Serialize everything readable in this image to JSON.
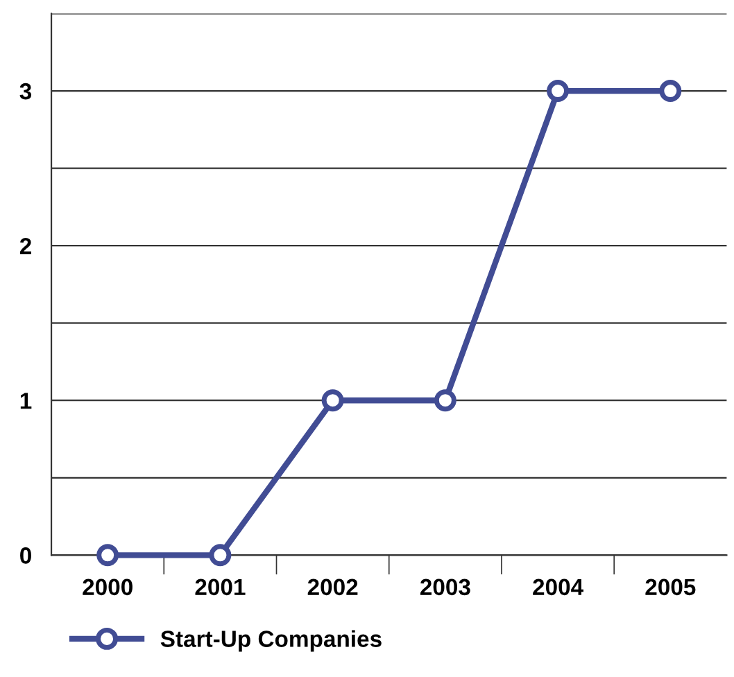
{
  "chart_data": {
    "type": "line",
    "categories": [
      "2000",
      "2001",
      "2002",
      "2003",
      "2004",
      "2005"
    ],
    "series": [
      {
        "name": "Start-Up Companies",
        "color": "#414c94",
        "values": [
          0,
          0,
          1,
          1,
          3,
          3
        ]
      }
    ],
    "ylim": [
      0,
      3.5
    ],
    "yticks": [
      0,
      {
        "value": 0.5,
        "label": null
      },
      1,
      {
        "value": 1.5,
        "label": null
      },
      2,
      {
        "value": 2.5,
        "label": null
      },
      3,
      {
        "value": 3.5,
        "label": null
      }
    ],
    "grid": "y",
    "legend": "bottom left",
    "marker": "circle",
    "line_style": "solid"
  }
}
